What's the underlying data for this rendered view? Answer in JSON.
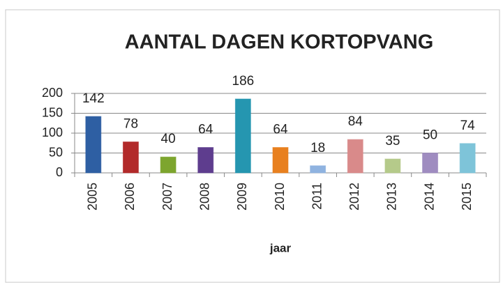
{
  "chart_data": {
    "type": "bar",
    "title": "AANTAL DAGEN KORTOPVANG",
    "x_label": "jaar",
    "categories": [
      "2005",
      "2006",
      "2007",
      "2008",
      "2009",
      "2010",
      "2011",
      "2012",
      "2013",
      "2014",
      "2015"
    ],
    "values": [
      142,
      78,
      40,
      64,
      186,
      64,
      18,
      84,
      35,
      50,
      74
    ],
    "colors": [
      "#2e5fa3",
      "#b22a2a",
      "#7da52e",
      "#5e3d8e",
      "#2596b0",
      "#e8801f",
      "#8fb3e0",
      "#d98a8a",
      "#b5ca8a",
      "#9f8cc0",
      "#7ec4d9"
    ],
    "ylim": [
      0,
      200
    ],
    "yticks": [
      0,
      50,
      100,
      150,
      200
    ],
    "grid": true
  }
}
